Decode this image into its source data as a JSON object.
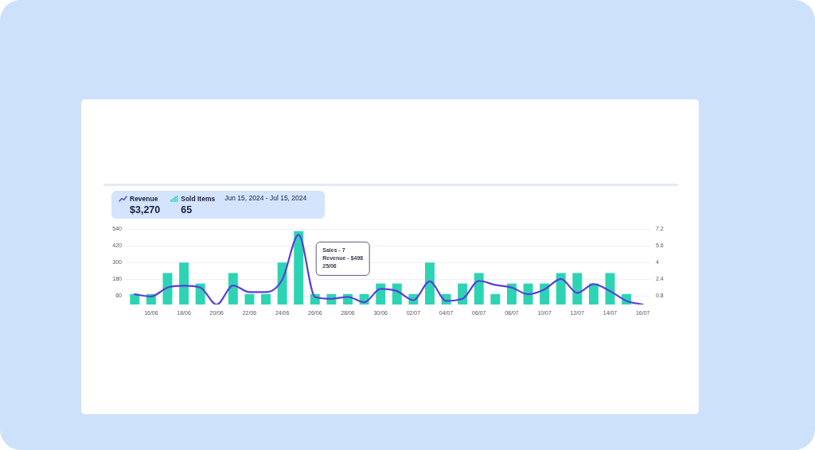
{
  "chart_data": {
    "type": "bar",
    "subtitle": "Jun 15, 2024 - Jul 15, 2024",
    "categories": [
      null,
      "16/06",
      null,
      "18/06",
      null,
      "20/06",
      null,
      "22/06",
      null,
      "24/06",
      null,
      "26/06",
      null,
      "28/06",
      null,
      "30/06",
      null,
      "02/07",
      null,
      "04/07",
      null,
      "06/07",
      null,
      "08/07",
      null,
      "10/07",
      null,
      "12/07",
      null,
      "14/07",
      null,
      "16/07"
    ],
    "series": [
      {
        "name": "Revenue",
        "type": "line",
        "color": "#5a3fd8",
        "values": [
          73,
          58,
          121,
          134,
          121,
          0,
          136,
          89,
          89,
          178,
          498,
          54,
          41,
          54,
          16,
          111,
          96,
          31,
          165,
          26,
          41,
          169,
          140,
          121,
          73,
          108,
          183,
          83,
          146,
          96,
          26,
          0
        ]
      },
      {
        "name": "Sold Items",
        "axis": "y2",
        "color": "#2dd4b4",
        "values": [
          1,
          1,
          3,
          4,
          2,
          0,
          3,
          1,
          1,
          4,
          7,
          1,
          1,
          1,
          1,
          2,
          2,
          1,
          4,
          1,
          2,
          3,
          1,
          2,
          2,
          2,
          3,
          3,
          2,
          3,
          1,
          0
        ]
      }
    ],
    "ylim": [
      0,
      540
    ],
    "yticks": [
      60,
      180,
      300,
      420,
      540
    ],
    "y2lim": [
      0,
      7.2
    ],
    "y2ticks": [
      0.8,
      2.4,
      4,
      5.6,
      7.2
    ],
    "grid": "y",
    "legend": "top left",
    "marker": "none",
    "annotations": [
      "$3,270",
      "65",
      "Sales - 7",
      "Revenue - $498",
      "25/06"
    ]
  }
}
